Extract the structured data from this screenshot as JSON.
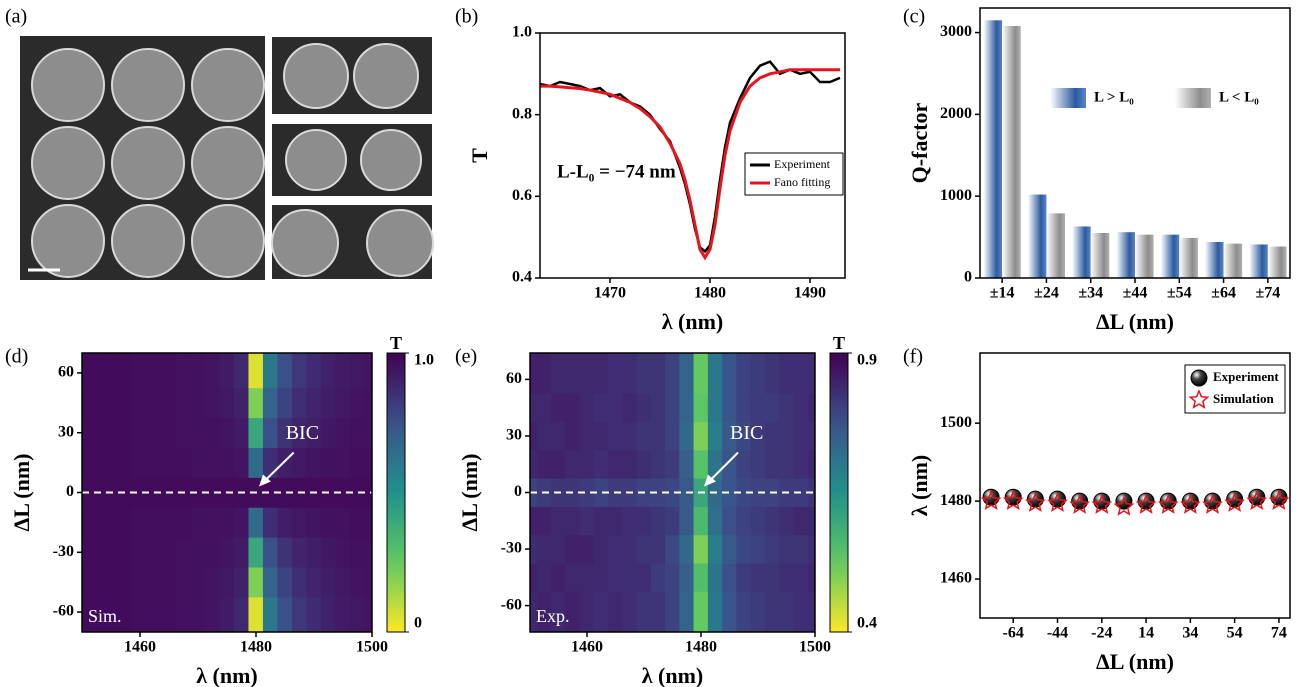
{
  "panel_a": {
    "panel_label": "(a)"
  },
  "chart_data": [
    {
      "type": "line",
      "panel_label": "(b)",
      "x_label": "λ (nm)",
      "y_label": "T",
      "annotation": "L-L₀ = −74 nm",
      "x": [
        1463,
        1464,
        1465,
        1466,
        1467,
        1468,
        1469,
        1470,
        1471,
        1472,
        1473,
        1474,
        1475,
        1476,
        1477,
        1477.5,
        1478,
        1478.5,
        1479,
        1479.5,
        1480,
        1480.5,
        1481,
        1481.5,
        1482,
        1483,
        1484,
        1485,
        1486,
        1487,
        1488,
        1489,
        1490,
        1491,
        1492,
        1493
      ],
      "series": [
        {
          "name": "Experiment",
          "color": "#000000",
          "values": [
            0.875,
            0.87,
            0.88,
            0.875,
            0.87,
            0.86,
            0.865,
            0.845,
            0.85,
            0.83,
            0.82,
            0.8,
            0.765,
            0.735,
            0.67,
            0.63,
            0.58,
            0.52,
            0.475,
            0.465,
            0.48,
            0.55,
            0.64,
            0.72,
            0.78,
            0.84,
            0.89,
            0.92,
            0.93,
            0.9,
            0.91,
            0.9,
            0.905,
            0.88,
            0.88,
            0.89
          ]
        },
        {
          "name": "Fano fitting",
          "color": "#e8141c",
          "values": [
            0.87,
            0.87,
            0.868,
            0.866,
            0.864,
            0.86,
            0.855,
            0.85,
            0.84,
            0.83,
            0.815,
            0.795,
            0.77,
            0.73,
            0.68,
            0.64,
            0.59,
            0.53,
            0.47,
            0.45,
            0.47,
            0.53,
            0.62,
            0.7,
            0.76,
            0.83,
            0.87,
            0.89,
            0.9,
            0.905,
            0.91,
            0.91,
            0.91,
            0.91,
            0.91,
            0.91
          ]
        }
      ],
      "xlim": [
        1463,
        1493.5
      ],
      "xticks": [
        1470,
        1480,
        1490
      ],
      "ylim": [
        0.4,
        1
      ],
      "yticks": [
        0.4,
        0.6,
        0.8,
        {
          "value": 1,
          "label": "1.0"
        }
      ],
      "legend": "lower right"
    },
    {
      "type": "bar",
      "panel_label": "(c)",
      "x_label": "ΔL (nm)",
      "y_label": "Q-factor",
      "categories": [
        "±14",
        "±24",
        "±34",
        "±44",
        "±54",
        "±64",
        "±74"
      ],
      "series": [
        {
          "name": "L > L₀",
          "color": "#2c5aa0",
          "values": [
            3150,
            1020,
            630,
            560,
            530,
            440,
            410
          ]
        },
        {
          "name": "L < L₀",
          "color": "#8c8c8c",
          "values": [
            3080,
            790,
            550,
            530,
            490,
            420,
            385
          ]
        }
      ],
      "ylim": [
        0,
        3300
      ],
      "yticks": [
        0,
        1000,
        2000,
        3000
      ],
      "legend": "upper right"
    },
    {
      "type": "heatmap",
      "panel_label": "(d)",
      "x_label": "λ (nm)",
      "y_label": "ΔL (nm)",
      "corner_label": "Sim.",
      "annotation": "BIC",
      "colorbar_label": "T",
      "cmap": "viridis_r",
      "clim": [
        0,
        1
      ],
      "cticks": [
        0,
        {
          "value": 1,
          "label": "1.0"
        }
      ],
      "x": [
        1450,
        1452.5,
        1455,
        1457.5,
        1460,
        1462.5,
        1465,
        1467.5,
        1470,
        1472.5,
        1475,
        1477.5,
        1480,
        1482.5,
        1485,
        1487.5,
        1490,
        1492.5,
        1495,
        1497.5,
        1500
      ],
      "y": [
        -60,
        -45,
        -30,
        -15,
        0,
        15,
        30,
        45,
        60
      ],
      "z": [
        [
          0.97,
          0.97,
          0.97,
          0.97,
          0.96,
          0.96,
          0.96,
          0.95,
          0.95,
          0.94,
          0.92,
          0.88,
          0.05,
          0.6,
          0.76,
          0.83,
          0.87,
          0.9,
          0.92,
          0.93,
          0.94
        ],
        [
          0.97,
          0.97,
          0.97,
          0.97,
          0.96,
          0.96,
          0.96,
          0.95,
          0.95,
          0.94,
          0.93,
          0.9,
          0.2,
          0.68,
          0.8,
          0.86,
          0.89,
          0.91,
          0.93,
          0.94,
          0.95
        ],
        [
          0.97,
          0.97,
          0.97,
          0.97,
          0.96,
          0.96,
          0.96,
          0.95,
          0.95,
          0.95,
          0.94,
          0.92,
          0.4,
          0.76,
          0.85,
          0.89,
          0.91,
          0.93,
          0.94,
          0.95,
          0.95
        ],
        [
          0.97,
          0.97,
          0.97,
          0.97,
          0.96,
          0.96,
          0.96,
          0.96,
          0.95,
          0.95,
          0.95,
          0.94,
          0.65,
          0.86,
          0.91,
          0.93,
          0.94,
          0.95,
          0.95,
          0.96,
          0.96
        ],
        [
          0.97,
          0.97,
          0.97,
          0.97,
          0.97,
          0.97,
          0.97,
          0.97,
          0.97,
          0.97,
          0.97,
          0.97,
          0.97,
          0.97,
          0.97,
          0.97,
          0.97,
          0.97,
          0.97,
          0.97,
          0.97
        ],
        [
          0.97,
          0.97,
          0.97,
          0.97,
          0.96,
          0.96,
          0.96,
          0.96,
          0.95,
          0.95,
          0.95,
          0.94,
          0.65,
          0.86,
          0.91,
          0.93,
          0.94,
          0.95,
          0.95,
          0.96,
          0.96
        ],
        [
          0.97,
          0.97,
          0.97,
          0.97,
          0.96,
          0.96,
          0.96,
          0.95,
          0.95,
          0.95,
          0.94,
          0.92,
          0.4,
          0.76,
          0.85,
          0.89,
          0.91,
          0.93,
          0.94,
          0.95,
          0.95
        ],
        [
          0.97,
          0.97,
          0.97,
          0.97,
          0.96,
          0.96,
          0.96,
          0.95,
          0.95,
          0.94,
          0.93,
          0.9,
          0.2,
          0.68,
          0.8,
          0.86,
          0.89,
          0.91,
          0.93,
          0.94,
          0.95
        ],
        [
          0.97,
          0.97,
          0.97,
          0.97,
          0.96,
          0.96,
          0.96,
          0.95,
          0.95,
          0.94,
          0.92,
          0.88,
          0.05,
          0.6,
          0.76,
          0.83,
          0.87,
          0.9,
          0.92,
          0.93,
          0.94
        ]
      ],
      "xlim": [
        1450,
        1500
      ],
      "xticks": [
        1460,
        1480,
        1500
      ],
      "ylim": [
        -70,
        70
      ],
      "yticks": [
        -60,
        -30,
        0,
        30,
        60
      ],
      "hline": 0
    },
    {
      "type": "heatmap",
      "panel_label": "(e)",
      "x_label": "λ (nm)",
      "y_label": "ΔL (nm)",
      "corner_label": "Exp.",
      "annotation": "BIC",
      "colorbar_label": "T",
      "cmap": "viridis_r",
      "clim": [
        0.4,
        0.9
      ],
      "cticks": [
        0.4,
        0.9
      ],
      "x": [
        1450,
        1452.5,
        1455,
        1457.5,
        1460,
        1462.5,
        1465,
        1467.5,
        1470,
        1472.5,
        1475,
        1477.5,
        1480,
        1482.5,
        1485,
        1487.5,
        1490,
        1492.5,
        1495,
        1497.5,
        1500
      ],
      "y": [
        -60,
        -45,
        -30,
        -15,
        0,
        15,
        30,
        45,
        60
      ],
      "z": [
        [
          0.84,
          0.85,
          0.84,
          0.85,
          0.84,
          0.83,
          0.84,
          0.83,
          0.82,
          0.82,
          0.8,
          0.74,
          0.52,
          0.7,
          0.77,
          0.8,
          0.81,
          0.82,
          0.82,
          0.83,
          0.83
        ],
        [
          0.85,
          0.84,
          0.85,
          0.84,
          0.84,
          0.84,
          0.83,
          0.83,
          0.83,
          0.81,
          0.8,
          0.75,
          0.55,
          0.71,
          0.78,
          0.81,
          0.82,
          0.82,
          0.83,
          0.83,
          0.84
        ],
        [
          0.83,
          0.84,
          0.84,
          0.85,
          0.85,
          0.84,
          0.83,
          0.83,
          0.82,
          0.82,
          0.79,
          0.73,
          0.5,
          0.69,
          0.76,
          0.79,
          0.8,
          0.81,
          0.82,
          0.82,
          0.83
        ],
        [
          0.85,
          0.85,
          0.84,
          0.84,
          0.83,
          0.84,
          0.84,
          0.83,
          0.83,
          0.82,
          0.81,
          0.76,
          0.56,
          0.72,
          0.78,
          0.8,
          0.81,
          0.82,
          0.83,
          0.84,
          0.84
        ],
        [
          0.8,
          0.81,
          0.82,
          0.82,
          0.81,
          0.8,
          0.81,
          0.81,
          0.8,
          0.8,
          0.79,
          0.76,
          0.6,
          0.73,
          0.77,
          0.79,
          0.8,
          0.8,
          0.81,
          0.81,
          0.82
        ],
        [
          0.84,
          0.85,
          0.85,
          0.84,
          0.84,
          0.83,
          0.84,
          0.84,
          0.83,
          0.82,
          0.81,
          0.75,
          0.54,
          0.71,
          0.77,
          0.8,
          0.81,
          0.82,
          0.82,
          0.83,
          0.84
        ],
        [
          0.85,
          0.84,
          0.84,
          0.85,
          0.84,
          0.84,
          0.83,
          0.83,
          0.82,
          0.82,
          0.8,
          0.73,
          0.5,
          0.69,
          0.76,
          0.79,
          0.81,
          0.82,
          0.82,
          0.83,
          0.83
        ],
        [
          0.84,
          0.84,
          0.85,
          0.85,
          0.84,
          0.83,
          0.83,
          0.84,
          0.83,
          0.82,
          0.8,
          0.74,
          0.53,
          0.7,
          0.77,
          0.8,
          0.81,
          0.81,
          0.82,
          0.83,
          0.84
        ],
        [
          0.85,
          0.85,
          0.84,
          0.84,
          0.84,
          0.84,
          0.83,
          0.83,
          0.82,
          0.82,
          0.8,
          0.74,
          0.52,
          0.7,
          0.77,
          0.8,
          0.81,
          0.82,
          0.83,
          0.83,
          0.83
        ]
      ],
      "xlim": [
        1450,
        1500
      ],
      "xticks": [
        1460,
        1480,
        1500
      ],
      "ylim": [
        -74,
        74
      ],
      "yticks": [
        -60,
        -30,
        0,
        30,
        60
      ],
      "hline": 0
    },
    {
      "type": "scatter",
      "panel_label": "(f)",
      "x_label": "ΔL (nm)",
      "y_label": "λ (nm)",
      "categories": [
        null,
        "-64",
        null,
        "-44",
        null,
        "-24",
        null,
        "14",
        null,
        "34",
        null,
        "54",
        null,
        "74"
      ],
      "series": [
        {
          "name": "Experiment",
          "marker": "ball",
          "color": "#000000",
          "values": [
            1481,
            1481,
            1480.5,
            1480.5,
            1480,
            1480,
            1480,
            1480,
            1480,
            1480,
            1480,
            1480.5,
            1481,
            1481
          ]
        },
        {
          "name": "Simulation",
          "marker": "star",
          "color": "#e8141c",
          "values": [
            1480,
            1480,
            1479.5,
            1479.5,
            1479,
            1479,
            1478.5,
            1479,
            1479,
            1479,
            1479,
            1479.5,
            1480,
            1480
          ]
        }
      ],
      "ylim": [
        1450,
        1518
      ],
      "yticks": [
        1460,
        1480,
        1500
      ],
      "legend": "upper right"
    }
  ]
}
